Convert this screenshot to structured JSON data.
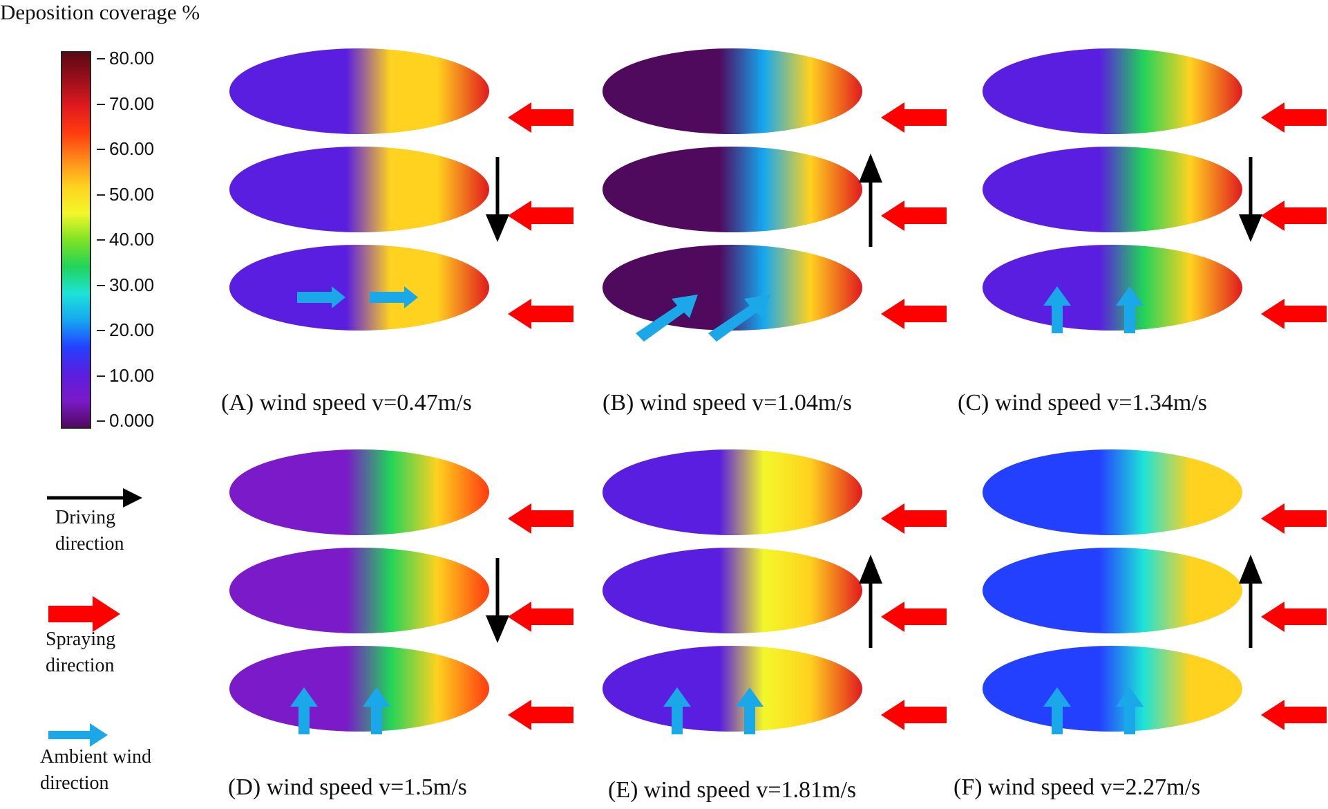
{
  "colorbar": {
    "title": "Deposition coverage %",
    "ticks": [
      "80.00",
      "70.00",
      "60.00",
      "50.00",
      "40.00",
      "30.00",
      "20.00",
      "10.00",
      "0.000"
    ],
    "stops": [
      "#5a0a14",
      "#9a0f1c",
      "#e01a1e",
      "#ff3b10",
      "#ff8a1a",
      "#ffd21f",
      "#f3f72a",
      "#7ee324",
      "#22d35a",
      "#1ee3d8",
      "#16a7f0",
      "#2440ff",
      "#5a1ee0",
      "#7a1ac8",
      "#4f0a5e"
    ]
  },
  "legend": {
    "driving_label": "Driving direction",
    "spraying_label": "Spraying direction",
    "wind_label": "Ambient wind direction",
    "colors": {
      "driving": "#000000",
      "spraying": "#ff0000",
      "wind": "#1aa8e8"
    }
  },
  "panels": [
    {
      "caption": "(A) wind speed v=0.47m/s",
      "wind": "right",
      "drive": "down"
    },
    {
      "caption": "(B) wind speed v=1.04m/s",
      "wind": "diag",
      "drive": "up"
    },
    {
      "caption": "(C) wind speed v=1.34m/s",
      "wind": "up",
      "drive": "down"
    },
    {
      "caption": "(D) wind speed v=1.5m/s",
      "wind": "up",
      "drive": "down"
    },
    {
      "caption": "(E) wind speed v=1.81m/s",
      "wind": "up",
      "drive": "up"
    },
    {
      "caption": "(F) wind speed v=2.27m/s",
      "wind": "up",
      "drive": "up"
    }
  ]
}
